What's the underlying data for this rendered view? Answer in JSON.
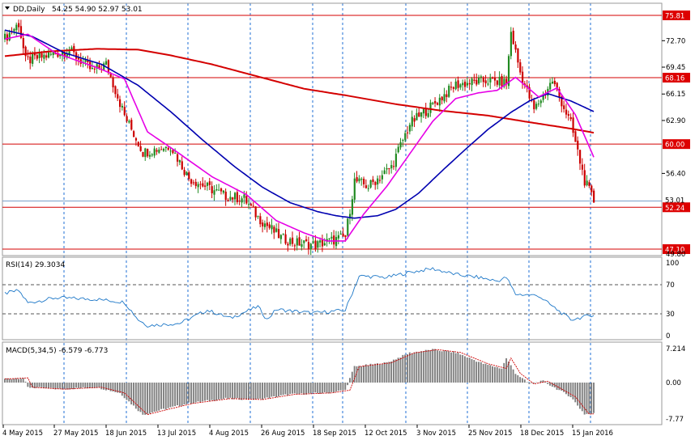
{
  "title": {
    "symbol": "DD,Daily",
    "ohlc": "54.25 54.90 52.97 53.01"
  },
  "colors": {
    "up": "#228b22",
    "down": "#cc0000",
    "ma_fast": "#e600e6",
    "ma_mid": "#0000b0",
    "ma_slow": "#d40000",
    "level_line": "#d40000",
    "level_box": "#dd0000",
    "price_box": "#3a6ea5",
    "rsi_line": "#1e78c8",
    "macd_hist": "#7f7f7f",
    "macd_signal": "#cc0000",
    "grid": "#1f6fd6"
  },
  "price_axis": {
    "labels": [
      "72.70",
      "69.45",
      "66.15",
      "62.90",
      "56.40",
      "49.80"
    ],
    "ylim": [
      46.4,
      77.2
    ]
  },
  "levels": [
    {
      "label": "75.81",
      "value": 75.81
    },
    {
      "label": "68.16",
      "value": 68.16
    },
    {
      "label": "60.00",
      "value": 60.0
    },
    {
      "label": "52.24",
      "value": 52.24
    },
    {
      "label": "47.10",
      "value": 47.1
    }
  ],
  "current_price": {
    "label": "53.01",
    "value": 53.01
  },
  "rsi": {
    "title": "RSI(14) 29.3034",
    "labels": [
      "100",
      "70",
      "30",
      "0"
    ],
    "levels": [
      70,
      30
    ]
  },
  "macd": {
    "title": "MACD(5,34,5) -6.579 -6.773",
    "labels": [
      "7.214",
      "0.00",
      "-7.77"
    ]
  },
  "x_axis": {
    "labels": [
      "4 May 2015",
      "27 May 2015",
      "18 Jun 2015",
      "13 Jul 2015",
      "4 Aug 2015",
      "26 Aug 2015",
      "18 Sep 2015",
      "12 Oct 2015",
      "3 Nov 2015",
      "25 Nov 2015",
      "18 Dec 2015",
      "15 Jan 2016"
    ]
  },
  "chart_data": {
    "type": "candlestick",
    "title": "DD,Daily",
    "y_range": [
      46.4,
      77.2
    ],
    "anchors": [
      [
        0,
        73.0
      ],
      [
        6,
        74.8
      ],
      [
        9,
        70.2
      ],
      [
        20,
        71.0
      ],
      [
        28,
        71.5
      ],
      [
        38,
        69.0
      ],
      [
        44,
        69.8
      ],
      [
        52,
        63.5
      ],
      [
        60,
        59.0
      ],
      [
        72,
        59.8
      ],
      [
        80,
        55.8
      ],
      [
        96,
        53.6
      ],
      [
        104,
        53.3
      ],
      [
        110,
        51.0
      ],
      [
        120,
        48.5
      ],
      [
        126,
        47.9
      ],
      [
        135,
        47.6
      ],
      [
        148,
        48.6
      ],
      [
        152,
        55.5
      ],
      [
        158,
        54.8
      ],
      [
        168,
        57.2
      ],
      [
        176,
        62.5
      ],
      [
        186,
        64.8
      ],
      [
        196,
        67.3
      ],
      [
        210,
        67.8
      ],
      [
        218,
        67.5
      ],
      [
        220,
        73.8
      ],
      [
        224,
        68.8
      ],
      [
        230,
        64.2
      ],
      [
        238,
        67.8
      ],
      [
        246,
        62.5
      ],
      [
        252,
        55.5
      ],
      [
        256,
        53.0
      ]
    ],
    "ma_fast": [
      [
        0,
        72.9
      ],
      [
        10,
        73.5
      ],
      [
        22,
        71.2
      ],
      [
        40,
        69.4
      ],
      [
        52,
        68.0
      ],
      [
        62,
        61.5
      ],
      [
        75,
        59.0
      ],
      [
        90,
        56.0
      ],
      [
        105,
        53.8
      ],
      [
        118,
        50.6
      ],
      [
        130,
        49.1
      ],
      [
        140,
        48.1
      ],
      [
        148,
        48.1
      ],
      [
        156,
        51.4
      ],
      [
        166,
        54.8
      ],
      [
        176,
        58.8
      ],
      [
        186,
        62.8
      ],
      [
        196,
        65.6
      ],
      [
        206,
        66.3
      ],
      [
        214,
        66.6
      ],
      [
        222,
        68.2
      ],
      [
        232,
        65.8
      ],
      [
        240,
        66.9
      ],
      [
        248,
        63.6
      ],
      [
        256,
        58.4
      ]
    ],
    "ma_mid": [
      [
        0,
        74.0
      ],
      [
        12,
        73.2
      ],
      [
        26,
        71.2
      ],
      [
        42,
        69.8
      ],
      [
        58,
        67.2
      ],
      [
        72,
        64.0
      ],
      [
        86,
        60.5
      ],
      [
        100,
        57.2
      ],
      [
        112,
        54.7
      ],
      [
        124,
        52.8
      ],
      [
        136,
        51.7
      ],
      [
        144,
        51.2
      ],
      [
        152,
        50.9
      ],
      [
        162,
        51.2
      ],
      [
        170,
        52.0
      ],
      [
        180,
        54.0
      ],
      [
        190,
        56.7
      ],
      [
        200,
        59.3
      ],
      [
        210,
        61.8
      ],
      [
        220,
        63.9
      ],
      [
        228,
        65.3
      ],
      [
        236,
        66.2
      ],
      [
        246,
        65.3
      ],
      [
        256,
        64.0
      ]
    ],
    "ma_slow": [
      [
        0,
        70.8
      ],
      [
        20,
        71.4
      ],
      [
        40,
        71.7
      ],
      [
        58,
        71.6
      ],
      [
        72,
        70.9
      ],
      [
        90,
        69.8
      ],
      [
        110,
        68.3
      ],
      [
        130,
        66.8
      ],
      [
        150,
        65.9
      ],
      [
        170,
        64.9
      ],
      [
        190,
        64.1
      ],
      [
        210,
        63.5
      ],
      [
        230,
        62.6
      ],
      [
        246,
        61.9
      ],
      [
        256,
        61.4
      ]
    ],
    "rsi_values": [
      [
        0,
        58
      ],
      [
        6,
        62
      ],
      [
        10,
        45
      ],
      [
        22,
        52
      ],
      [
        40,
        50
      ],
      [
        52,
        46
      ],
      [
        58,
        22
      ],
      [
        62,
        14
      ],
      [
        76,
        17
      ],
      [
        88,
        35
      ],
      [
        98,
        24
      ],
      [
        110,
        40
      ],
      [
        114,
        22
      ],
      [
        118,
        36
      ],
      [
        134,
        31
      ],
      [
        148,
        35
      ],
      [
        154,
        82
      ],
      [
        166,
        80
      ],
      [
        176,
        87
      ],
      [
        186,
        92
      ],
      [
        196,
        84
      ],
      [
        206,
        80
      ],
      [
        214,
        75
      ],
      [
        218,
        80
      ],
      [
        222,
        57
      ],
      [
        232,
        55
      ],
      [
        236,
        45
      ],
      [
        246,
        22
      ],
      [
        252,
        26
      ],
      [
        256,
        29
      ]
    ],
    "macd_values": [
      [
        0,
        0.8
      ],
      [
        8,
        1.0
      ],
      [
        10,
        -1.0
      ],
      [
        24,
        -1.4
      ],
      [
        40,
        -1.0
      ],
      [
        50,
        -2.2
      ],
      [
        60,
        -6.8
      ],
      [
        68,
        -5.8
      ],
      [
        80,
        -4.4
      ],
      [
        96,
        -3.4
      ],
      [
        110,
        -3.6
      ],
      [
        124,
        -2.5
      ],
      [
        140,
        -2.2
      ],
      [
        148,
        -1.6
      ],
      [
        152,
        3.4
      ],
      [
        166,
        4.2
      ],
      [
        176,
        6.3
      ],
      [
        186,
        7.0
      ],
      [
        196,
        6.4
      ],
      [
        208,
        4.0
      ],
      [
        216,
        3.0
      ],
      [
        218,
        5.2
      ],
      [
        222,
        2.0
      ],
      [
        228,
        -0.3
      ],
      [
        234,
        0.3
      ],
      [
        246,
        -3.0
      ],
      [
        252,
        -6.7
      ],
      [
        256,
        -6.6
      ]
    ]
  }
}
